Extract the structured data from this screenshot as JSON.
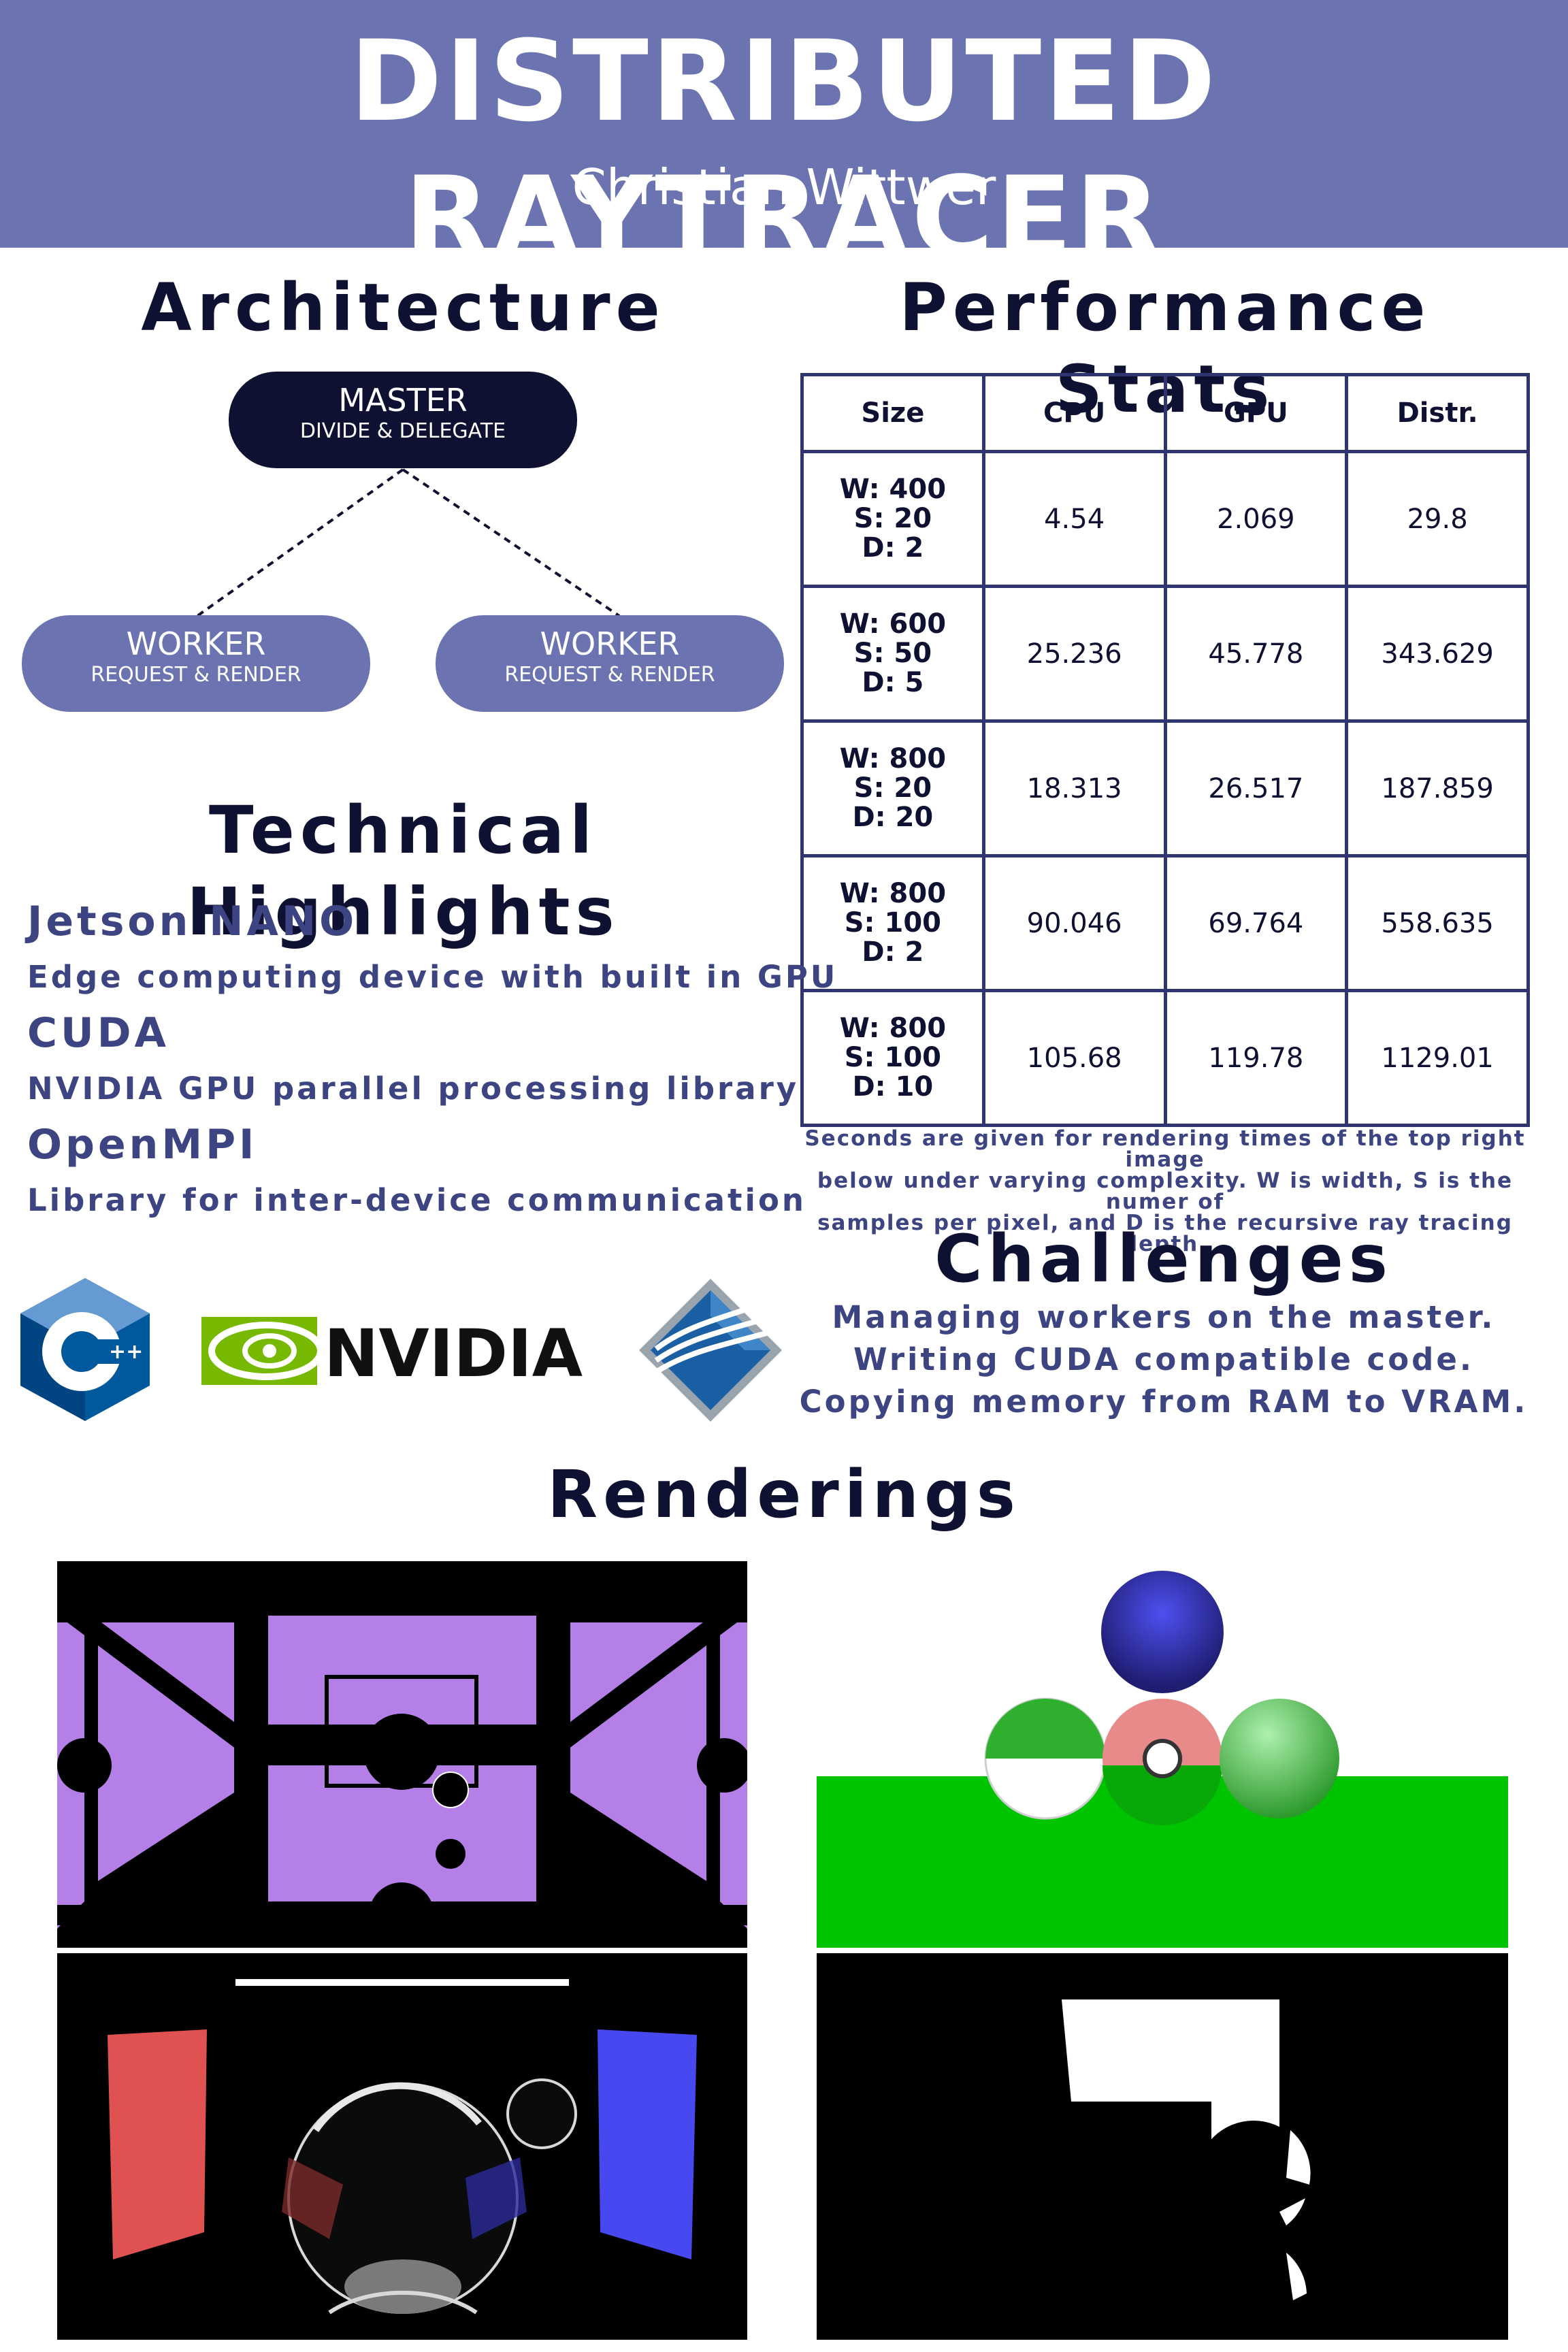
{
  "header": {
    "title": "DISTRIBUTED RAYTRACER",
    "author": "Christian Wittwer",
    "color": "#6b74b1"
  },
  "architecture": {
    "heading": "Architecture",
    "master": {
      "title": "MASTER",
      "subtitle": "DIVIDE & DELEGATE"
    },
    "workers": [
      {
        "title": "WORKER",
        "subtitle": "REQUEST & RENDER"
      },
      {
        "title": "WORKER",
        "subtitle": "REQUEST & RENDER"
      }
    ]
  },
  "performance": {
    "heading": "Performance Stats",
    "columns": [
      "Size",
      "CPU",
      "GPU",
      "Distr."
    ],
    "rows": [
      {
        "w": "W: 400",
        "s": "S: 20",
        "d": "D: 2",
        "cpu": "4.54",
        "gpu": "2.069",
        "distr": "29.8"
      },
      {
        "w": "W: 600",
        "s": "S: 50",
        "d": "D: 5",
        "cpu": "25.236",
        "gpu": "45.778",
        "distr": "343.629"
      },
      {
        "w": "W: 800",
        "s": "S: 20",
        "d": "D: 20",
        "cpu": "18.313",
        "gpu": "26.517",
        "distr": "187.859"
      },
      {
        "w": "W: 800",
        "s": "S: 100",
        "d": "D: 2",
        "cpu": "90.046",
        "gpu": "69.764",
        "distr": "558.635"
      },
      {
        "w": "W: 800",
        "s": "S: 100",
        "d": "D: 10",
        "cpu": "105.68",
        "gpu": "119.78",
        "distr": "1129.01"
      }
    ],
    "note": [
      "Seconds are given for rendering times of the top right image",
      "below under varying complexity. W is width, S is the numer of",
      "samples per pixel, and D is the recursive ray tracing depth."
    ]
  },
  "highlights": {
    "heading": "Technical Highlights",
    "items": [
      {
        "title": "Jetson NANO",
        "desc": "Edge computing device with built in GPU"
      },
      {
        "title": "CUDA",
        "desc": "NVIDIA GPU parallel processing library"
      },
      {
        "title": "OpenMPI",
        "desc": "Library for inter-device communication"
      }
    ]
  },
  "logos": {
    "cpp": "C++ logo",
    "nvidia": "NVIDIA",
    "openmpi": "OpenMPI logo"
  },
  "challenges": {
    "heading": "Challenges",
    "items": [
      "Managing workers on the master.",
      "Writing CUDA compatible code.",
      "Copying memory from RAM to VRAM."
    ]
  },
  "renderings": {
    "heading": "Renderings"
  }
}
